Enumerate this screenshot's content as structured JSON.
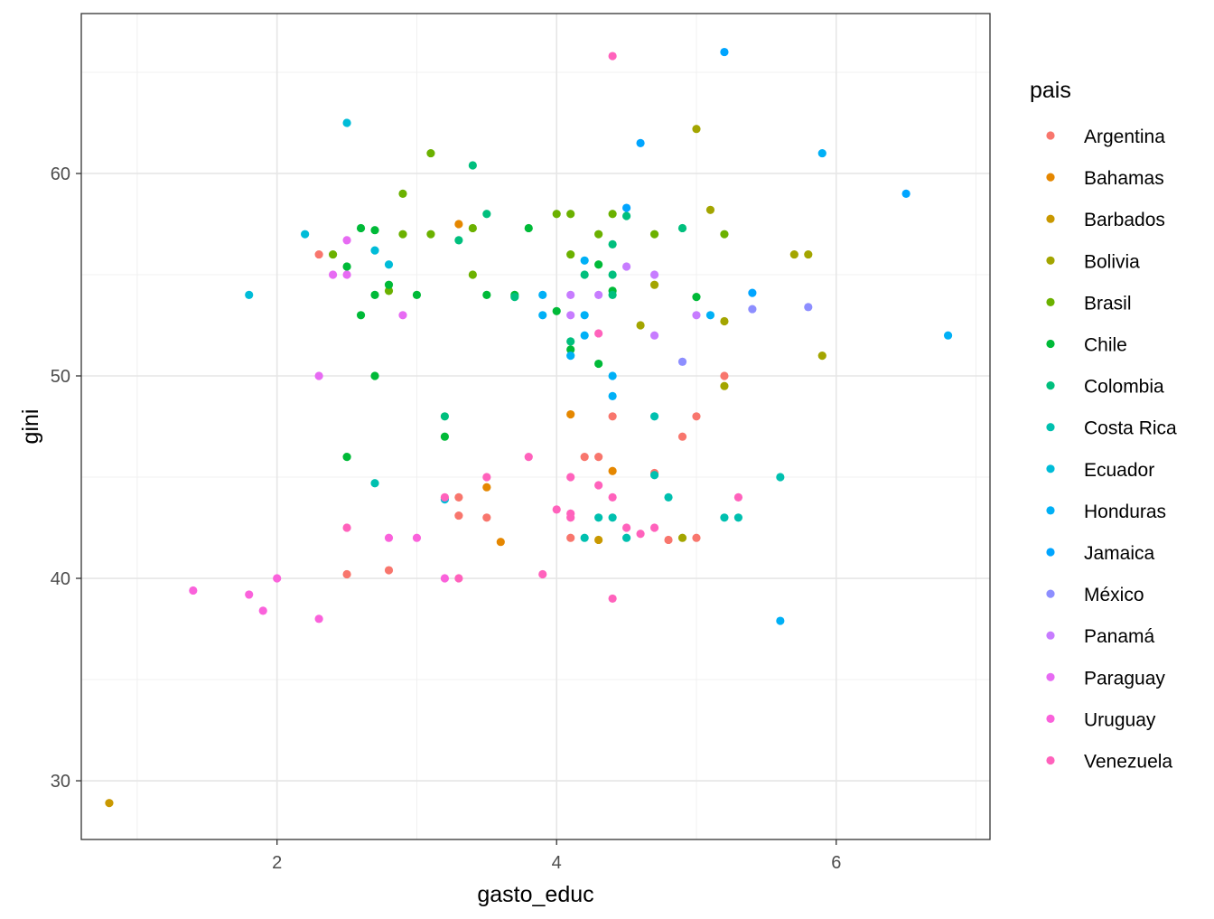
{
  "chart_data": {
    "type": "scatter",
    "title": "",
    "xlabel": "gasto_educ",
    "ylabel": "gini",
    "xlim": [
      0.6,
      7.1
    ],
    "ylim": [
      27.1,
      67.9
    ],
    "x_ticks": [
      2,
      4,
      6
    ],
    "y_ticks": [
      30,
      40,
      50,
      60
    ],
    "grid": true,
    "legend": {
      "title": "pais",
      "position": "right",
      "items": [
        {
          "label": "Argentina",
          "color": "#F8766D"
        },
        {
          "label": "Bahamas",
          "color": "#E58700"
        },
        {
          "label": "Barbados",
          "color": "#C99800"
        },
        {
          "label": "Bolivia",
          "color": "#A3A500"
        },
        {
          "label": "Brasil",
          "color": "#6BB100"
        },
        {
          "label": "Chile",
          "color": "#00BA38"
        },
        {
          "label": "Colombia",
          "color": "#00BF7D"
        },
        {
          "label": "Costa Rica",
          "color": "#00C0AF"
        },
        {
          "label": "Ecuador",
          "color": "#00BCD8"
        },
        {
          "label": "Honduras",
          "color": "#00B0F6"
        },
        {
          "label": "Jamaica",
          "color": "#00A5FF"
        },
        {
          "label": "México",
          "color": "#8D8EFF"
        },
        {
          "label": "Panamá",
          "color": "#C77CFF"
        },
        {
          "label": "Paraguay",
          "color": "#E76BF3"
        },
        {
          "label": "Uruguay",
          "color": "#FA62DB"
        },
        {
          "label": "Venezuela",
          "color": "#FF62BC"
        }
      ]
    },
    "series": [
      {
        "name": "Argentina",
        "color": "#F8766D",
        "points": [
          [
            2.3,
            56
          ],
          [
            2.5,
            40.2
          ],
          [
            2.8,
            40.4
          ],
          [
            3.3,
            43.1
          ],
          [
            3.3,
            44
          ],
          [
            3.5,
            43
          ],
          [
            4.1,
            42
          ],
          [
            4.2,
            46
          ],
          [
            4.3,
            46
          ],
          [
            4.4,
            48
          ],
          [
            4.7,
            45.2
          ],
          [
            4.8,
            41.9
          ],
          [
            4.9,
            47
          ],
          [
            5.0,
            48
          ],
          [
            5.0,
            42
          ],
          [
            5.2,
            50
          ]
        ]
      },
      {
        "name": "Bahamas",
        "color": "#E58700",
        "points": [
          [
            3.3,
            57.5
          ],
          [
            3.5,
            44.5
          ],
          [
            3.6,
            41.8
          ],
          [
            4.1,
            48.1
          ],
          [
            4.4,
            45.3
          ]
        ]
      },
      {
        "name": "Barbados",
        "color": "#C99800",
        "points": [
          [
            0.8,
            28.9
          ],
          [
            4.3,
            41.9
          ]
        ]
      },
      {
        "name": "Bolivia",
        "color": "#A3A500",
        "points": [
          [
            4.6,
            52.5
          ],
          [
            4.7,
            54.5
          ],
          [
            4.9,
            42
          ],
          [
            5.0,
            62.2
          ],
          [
            5.1,
            58.2
          ],
          [
            5.2,
            52.7
          ],
          [
            5.2,
            49.5
          ],
          [
            5.7,
            56
          ],
          [
            5.8,
            56
          ],
          [
            5.9,
            51
          ]
        ]
      },
      {
        "name": "Brasil",
        "color": "#6BB100",
        "points": [
          [
            2.4,
            56
          ],
          [
            2.8,
            54.2
          ],
          [
            2.9,
            59
          ],
          [
            2.9,
            57
          ],
          [
            3.1,
            61
          ],
          [
            3.1,
            57
          ],
          [
            3.4,
            57.3
          ],
          [
            3.4,
            55
          ],
          [
            4.0,
            58
          ],
          [
            4.1,
            58
          ],
          [
            4.1,
            56
          ],
          [
            4.3,
            57
          ],
          [
            4.4,
            58
          ],
          [
            4.7,
            57
          ],
          [
            5.2,
            57
          ]
        ]
      },
      {
        "name": "Chile",
        "color": "#00BA38",
        "points": [
          [
            2.5,
            55.4
          ],
          [
            2.5,
            46
          ],
          [
            2.6,
            57.3
          ],
          [
            2.6,
            53
          ],
          [
            2.7,
            57.2
          ],
          [
            2.7,
            54
          ],
          [
            2.7,
            50
          ],
          [
            2.8,
            54.5
          ],
          [
            3.0,
            54
          ],
          [
            3.2,
            47
          ],
          [
            3.5,
            54
          ],
          [
            3.7,
            54
          ],
          [
            3.8,
            57.3
          ],
          [
            4.0,
            53.2
          ],
          [
            4.1,
            51.3
          ],
          [
            4.3,
            55.5
          ],
          [
            4.3,
            50.6
          ],
          [
            4.4,
            54.2
          ],
          [
            5.0,
            53.9
          ]
        ]
      },
      {
        "name": "Colombia",
        "color": "#00BF7D",
        "points": [
          [
            3.2,
            48
          ],
          [
            3.3,
            56.7
          ],
          [
            3.4,
            60.4
          ],
          [
            3.5,
            58
          ],
          [
            3.7,
            53.9
          ],
          [
            4.1,
            51.7
          ],
          [
            4.2,
            55
          ],
          [
            4.4,
            56.5
          ],
          [
            4.4,
            55
          ],
          [
            4.4,
            54
          ],
          [
            4.5,
            57.9
          ],
          [
            4.9,
            57.3
          ]
        ]
      },
      {
        "name": "Costa Rica",
        "color": "#00C0AF",
        "points": [
          [
            2.7,
            44.7
          ],
          [
            4.2,
            42
          ],
          [
            4.3,
            43
          ],
          [
            4.4,
            43
          ],
          [
            4.5,
            42
          ],
          [
            4.7,
            48
          ],
          [
            4.7,
            45.1
          ],
          [
            4.8,
            44
          ],
          [
            5.2,
            43
          ],
          [
            5.3,
            43
          ],
          [
            5.6,
            45
          ]
        ]
      },
      {
        "name": "Ecuador",
        "color": "#00BCD8",
        "points": [
          [
            1.8,
            54
          ],
          [
            2.2,
            57
          ],
          [
            2.5,
            62.5
          ],
          [
            2.7,
            56.2
          ],
          [
            2.8,
            55.5
          ],
          [
            3.2,
            43.9
          ]
        ]
      },
      {
        "name": "Honduras",
        "color": "#00B0F6",
        "points": [
          [
            3.9,
            54
          ],
          [
            3.9,
            53
          ],
          [
            4.1,
            51
          ],
          [
            4.2,
            55.7
          ],
          [
            4.2,
            53
          ],
          [
            4.2,
            52
          ],
          [
            4.4,
            50
          ],
          [
            4.4,
            49
          ],
          [
            5.1,
            53
          ],
          [
            5.6,
            37.9
          ],
          [
            5.9,
            61
          ],
          [
            6.8,
            52
          ]
        ]
      },
      {
        "name": "Jamaica",
        "color": "#00A5FF",
        "points": [
          [
            4.5,
            58.3
          ],
          [
            4.6,
            61.5
          ],
          [
            5.2,
            66
          ],
          [
            5.4,
            54.1
          ],
          [
            6.5,
            59
          ]
        ]
      },
      {
        "name": "México",
        "color": "#8D8EFF",
        "points": [
          [
            4.9,
            50.7
          ],
          [
            5.4,
            53.3
          ],
          [
            5.8,
            53.4
          ]
        ]
      },
      {
        "name": "Panamá",
        "color": "#C77CFF",
        "points": [
          [
            4.1,
            54
          ],
          [
            4.1,
            53
          ],
          [
            4.3,
            54
          ],
          [
            4.5,
            55.4
          ],
          [
            4.7,
            55
          ],
          [
            4.7,
            52
          ],
          [
            5.0,
            53
          ]
        ]
      },
      {
        "name": "Paraguay",
        "color": "#E76BF3",
        "points": [
          [
            2.3,
            50
          ],
          [
            2.4,
            55
          ],
          [
            2.5,
            56.7
          ],
          [
            2.5,
            55
          ],
          [
            2.9,
            53
          ]
        ]
      },
      {
        "name": "Uruguay",
        "color": "#FA62DB",
        "points": [
          [
            1.4,
            39.4
          ],
          [
            1.8,
            39.2
          ],
          [
            1.9,
            38.4
          ],
          [
            2.0,
            40
          ],
          [
            2.3,
            38
          ],
          [
            2.8,
            42
          ],
          [
            3.0,
            42
          ],
          [
            3.2,
            40
          ]
        ]
      },
      {
        "name": "Venezuela",
        "color": "#FF62BC",
        "points": [
          [
            2.5,
            42.5
          ],
          [
            3.2,
            44
          ],
          [
            3.3,
            40
          ],
          [
            3.5,
            45
          ],
          [
            3.8,
            46
          ],
          [
            3.9,
            40.2
          ],
          [
            4.0,
            43.4
          ],
          [
            4.1,
            45
          ],
          [
            4.1,
            43.2
          ],
          [
            4.1,
            43
          ],
          [
            4.3,
            52.1
          ],
          [
            4.3,
            44.6
          ],
          [
            4.4,
            65.8
          ],
          [
            4.4,
            44
          ],
          [
            4.4,
            39
          ],
          [
            4.5,
            42.5
          ],
          [
            4.6,
            42.2
          ],
          [
            4.7,
            42.5
          ],
          [
            5.3,
            44
          ]
        ]
      }
    ]
  }
}
